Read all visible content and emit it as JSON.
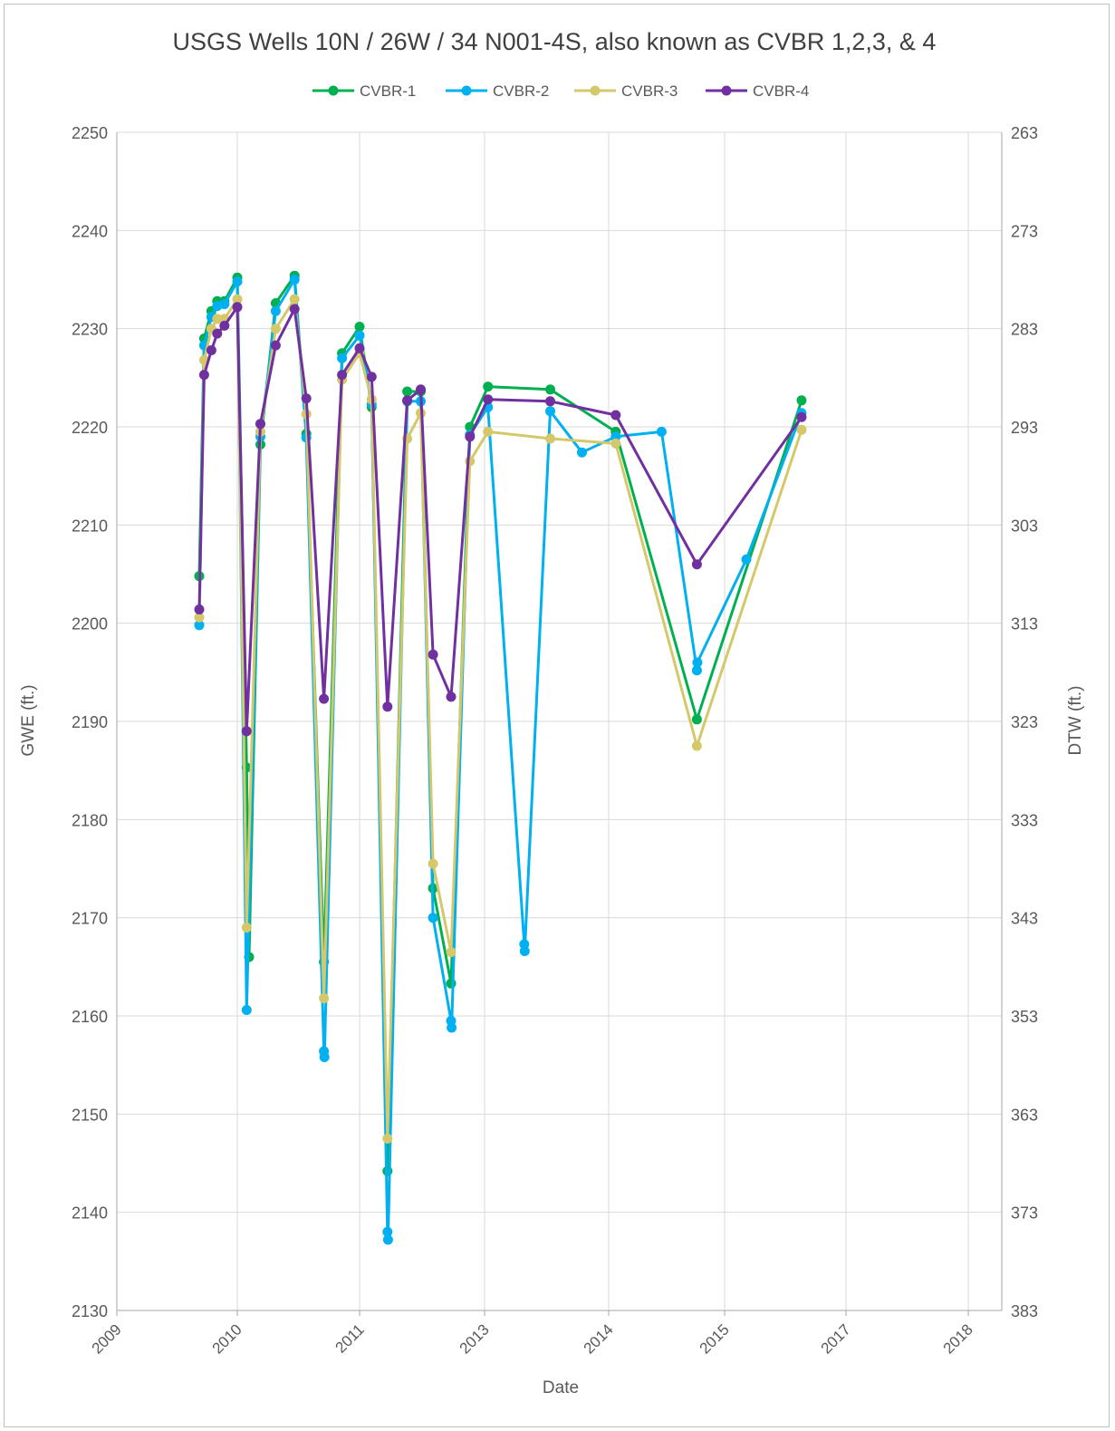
{
  "chart_data": {
    "type": "line",
    "title": "USGS Wells 10N / 26W / 34 N001-4S, also known as CVBR 1,2,3, & 4",
    "xlabel": "Date",
    "ylabel": "GWE (ft.)",
    "y2label": "DTW (ft.)",
    "ylim": [
      2130,
      2250
    ],
    "y_ticks": [
      "2130",
      "2140",
      "2150",
      "2160",
      "2170",
      "2180",
      "2190",
      "2200",
      "2210",
      "2220",
      "2230",
      "2240",
      "2250"
    ],
    "y2_ticks": [
      "383",
      "373",
      "363",
      "353",
      "343",
      "333",
      "323",
      "313",
      "303",
      "293",
      "283",
      "273",
      "263"
    ],
    "x_ticks": [
      "2009",
      "2010",
      "2011",
      "2013",
      "2014",
      "2015",
      "2017",
      "2018"
    ],
    "grid": true,
    "legend_position": "top",
    "series": [
      {
        "name": "CVBR-1",
        "color": "#00b050",
        "points": [
          [
            "2009-07-20",
            2204.8
          ],
          [
            "2009-08-10",
            2229.0
          ],
          [
            "2009-09-10",
            2231.8
          ],
          [
            "2009-10-05",
            2232.8
          ],
          [
            "2009-11-05",
            2232.8
          ],
          [
            "2009-12-30",
            2235.2
          ],
          [
            "2010-02-05",
            2185.3
          ],
          [
            "2010-02-15",
            2166.0
          ],
          [
            "2010-04-01",
            2218.2
          ],
          [
            "2010-06-01",
            2232.6
          ],
          [
            "2010-08-15",
            2235.4
          ],
          [
            "2010-10-01",
            2219.3
          ],
          [
            "2010-12-10",
            2165.5
          ],
          [
            "2011-02-20",
            2227.5
          ],
          [
            "2011-05-01",
            2230.2
          ],
          [
            "2011-06-20",
            2222.0
          ],
          [
            "2011-08-25",
            2144.2
          ],
          [
            "2011-11-15",
            2223.6
          ],
          [
            "2012-01-10",
            2223.6
          ],
          [
            "2012-03-01",
            2173.0
          ],
          [
            "2012-05-15",
            2163.3
          ],
          [
            "2012-08-01",
            2220.0
          ],
          [
            "2012-10-15",
            2224.1
          ],
          [
            "2013-07-01",
            2223.8
          ],
          [
            "2014-04-01",
            2219.5
          ],
          [
            "2015-03-25",
            2190.2
          ],
          [
            "2016-06-15",
            2222.7
          ]
        ]
      },
      {
        "name": "CVBR-2",
        "color": "#00b0f0",
        "points": [
          [
            "2009-07-20",
            2199.8
          ],
          [
            "2009-08-10",
            2228.3
          ],
          [
            "2009-09-10",
            2231.2
          ],
          [
            "2009-10-05",
            2232.3
          ],
          [
            "2009-11-05",
            2232.5
          ],
          [
            "2009-12-30",
            2234.8
          ],
          [
            "2010-02-05",
            2160.6
          ],
          [
            "2010-04-01",
            2219.0
          ],
          [
            "2010-06-01",
            2231.8
          ],
          [
            "2010-08-15",
            2235.0
          ],
          [
            "2010-10-01",
            2218.9
          ],
          [
            "2010-12-10",
            2156.4
          ],
          [
            "2010-12-12",
            2155.8
          ],
          [
            "2011-02-20",
            2227.0
          ],
          [
            "2011-05-01",
            2229.3
          ],
          [
            "2011-06-20",
            2222.3
          ],
          [
            "2011-08-25",
            2138.0
          ],
          [
            "2011-08-27",
            2137.2
          ],
          [
            "2011-11-15",
            2222.6
          ],
          [
            "2012-01-10",
            2222.6
          ],
          [
            "2012-03-01",
            2170.0
          ],
          [
            "2012-05-15",
            2159.5
          ],
          [
            "2012-05-17",
            2158.8
          ],
          [
            "2012-08-01",
            2219.2
          ],
          [
            "2012-10-15",
            2222.0
          ],
          [
            "2013-03-15",
            2167.3
          ],
          [
            "2013-03-17",
            2166.6
          ],
          [
            "2013-07-01",
            2221.6
          ],
          [
            "2013-11-10",
            2217.4
          ],
          [
            "2014-04-01",
            2219.0
          ],
          [
            "2014-10-20",
            2219.5
          ],
          [
            "2015-03-25",
            2195.2
          ],
          [
            "2015-03-27",
            2196.0
          ],
          [
            "2015-10-25",
            2206.5
          ],
          [
            "2016-06-15",
            2221.4
          ]
        ]
      },
      {
        "name": "CVBR-3",
        "color": "#d4c86a",
        "points": [
          [
            "2009-07-20",
            2200.6
          ],
          [
            "2009-08-10",
            2226.8
          ],
          [
            "2009-09-10",
            2230.0
          ],
          [
            "2009-10-05",
            2231.0
          ],
          [
            "2009-11-05",
            2231.0
          ],
          [
            "2009-12-30",
            2233.0
          ],
          [
            "2010-02-05",
            2169.0
          ],
          [
            "2010-04-01",
            2219.5
          ],
          [
            "2010-06-01",
            2230.0
          ],
          [
            "2010-08-15",
            2233.0
          ],
          [
            "2010-10-01",
            2221.3
          ],
          [
            "2010-12-10",
            2161.8
          ],
          [
            "2011-02-20",
            2224.8
          ],
          [
            "2011-05-01",
            2227.5
          ],
          [
            "2011-06-20",
            2222.8
          ],
          [
            "2011-08-25",
            2147.5
          ],
          [
            "2011-11-15",
            2218.8
          ],
          [
            "2012-01-10",
            2221.4
          ],
          [
            "2012-03-01",
            2175.5
          ],
          [
            "2012-05-15",
            2166.5
          ],
          [
            "2012-08-01",
            2216.5
          ],
          [
            "2012-10-15",
            2219.5
          ],
          [
            "2013-07-01",
            2218.8
          ],
          [
            "2014-04-01",
            2218.3
          ],
          [
            "2015-03-25",
            2187.5
          ],
          [
            "2016-06-15",
            2219.7
          ]
        ]
      },
      {
        "name": "CVBR-4",
        "color": "#7030a0",
        "points": [
          [
            "2009-07-20",
            2201.4
          ],
          [
            "2009-08-10",
            2225.3
          ],
          [
            "2009-09-10",
            2227.8
          ],
          [
            "2009-10-05",
            2229.5
          ],
          [
            "2009-11-05",
            2230.3
          ],
          [
            "2009-12-30",
            2232.2
          ],
          [
            "2010-02-05",
            2189.0
          ],
          [
            "2010-04-01",
            2220.3
          ],
          [
            "2010-06-01",
            2228.3
          ],
          [
            "2010-08-15",
            2232.0
          ],
          [
            "2010-10-01",
            2222.9
          ],
          [
            "2010-12-10",
            2192.3
          ],
          [
            "2011-02-20",
            2225.3
          ],
          [
            "2011-05-01",
            2228.0
          ],
          [
            "2011-06-20",
            2225.1
          ],
          [
            "2011-08-25",
            2191.5
          ],
          [
            "2011-11-15",
            2222.7
          ],
          [
            "2012-01-10",
            2223.8
          ],
          [
            "2012-03-01",
            2196.8
          ],
          [
            "2012-05-15",
            2192.5
          ],
          [
            "2012-08-01",
            2219.0
          ],
          [
            "2012-10-15",
            2222.8
          ],
          [
            "2013-07-01",
            2222.6
          ],
          [
            "2014-04-01",
            2221.2
          ],
          [
            "2015-03-25",
            2206.0
          ],
          [
            "2016-06-15",
            2221.0
          ]
        ]
      }
    ]
  }
}
